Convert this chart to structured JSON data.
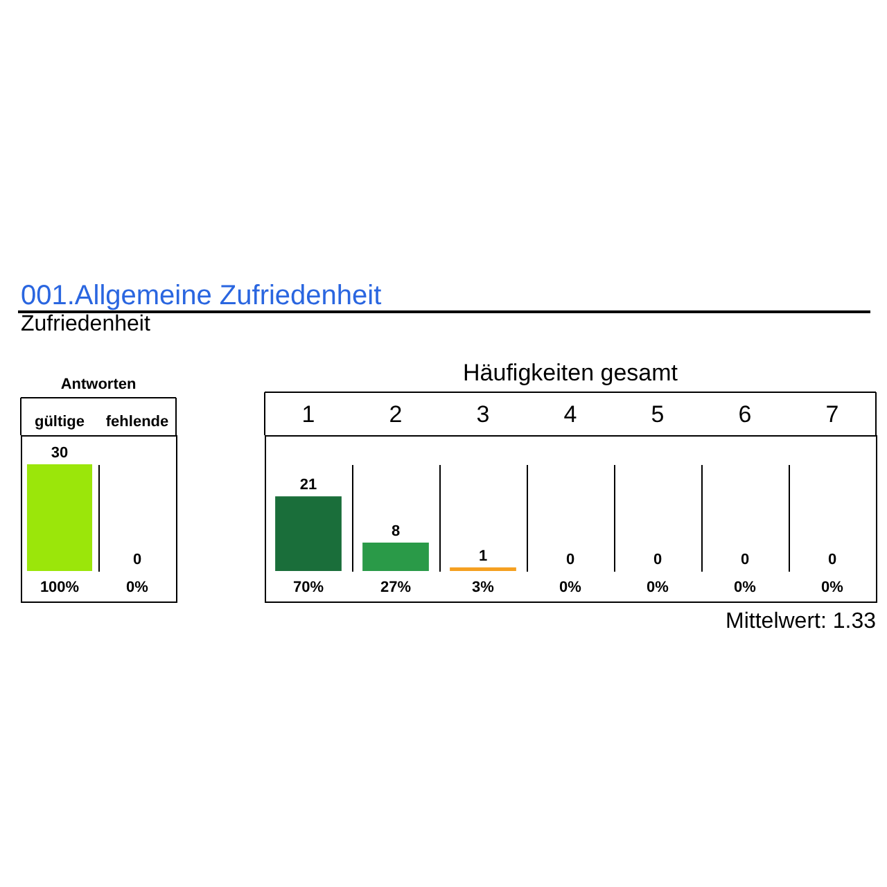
{
  "chart_data": [
    {
      "type": "other",
      "title": "001.Allgemeine Zufriedenheit",
      "subtitle": "Zufriedenheit"
    },
    {
      "type": "bar",
      "title": "Antworten",
      "categories": [
        "gültige",
        "fehlende"
      ],
      "values": [
        30,
        0
      ],
      "colors": [
        "#9be60a",
        "#9be60a"
      ],
      "value_labels": [
        "30",
        "0"
      ],
      "annotations": [
        "100%",
        "0%"
      ]
    },
    {
      "type": "bar",
      "title": "Häufigkeiten gesamt",
      "categories": [
        "1",
        "2",
        "3",
        "4",
        "5",
        "6",
        "7"
      ],
      "values": [
        21,
        8,
        1,
        0,
        0,
        0,
        0
      ],
      "colors": [
        "#1a6e3a",
        "#2a9a48",
        "#f5a020",
        "#f5a020",
        "#f5a020",
        "#f5a020",
        "#f5a020"
      ],
      "value_labels": [
        "21",
        "8",
        "1",
        "0",
        "0",
        "0",
        "0"
      ],
      "annotations": [
        "70%",
        "27%",
        "3%",
        "0%",
        "0%",
        "0%",
        "0%",
        "Mittelwert: 1.33"
      ]
    }
  ]
}
